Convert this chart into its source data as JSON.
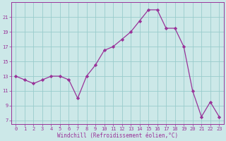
{
  "x_vals": [
    0,
    1,
    2,
    3,
    4,
    5,
    6,
    7,
    8,
    9,
    10,
    11,
    12,
    13,
    14,
    15,
    16,
    17,
    18,
    19,
    20,
    21,
    22,
    23
  ],
  "y_vals": [
    13,
    12.5,
    12,
    12.5,
    13,
    13,
    12.5,
    10,
    13,
    14.5,
    16.5,
    17,
    18,
    19,
    20.5,
    22,
    22,
    19.5,
    19.5,
    17,
    11,
    7.5,
    9.5,
    7.5
  ],
  "line_color": "#993399",
  "marker_color": "#993399",
  "bg_color": "#cce8e8",
  "grid_color": "#99cccc",
  "text_color": "#993399",
  "xlabel": "Windchill (Refroidissement éolien,°C)",
  "ylim": [
    6.5,
    23.0
  ],
  "xlim": [
    -0.5,
    23.5
  ],
  "yticks": [
    7,
    9,
    11,
    13,
    15,
    17,
    19,
    21
  ],
  "xticks": [
    0,
    1,
    2,
    3,
    4,
    5,
    6,
    7,
    8,
    9,
    10,
    11,
    12,
    13,
    14,
    15,
    16,
    17,
    18,
    19,
    20,
    21,
    22,
    23
  ],
  "spine_color": "#993399",
  "tick_fontsize": 5.0,
  "xlabel_fontsize": 5.5,
  "linewidth": 0.9,
  "markersize": 2.2
}
